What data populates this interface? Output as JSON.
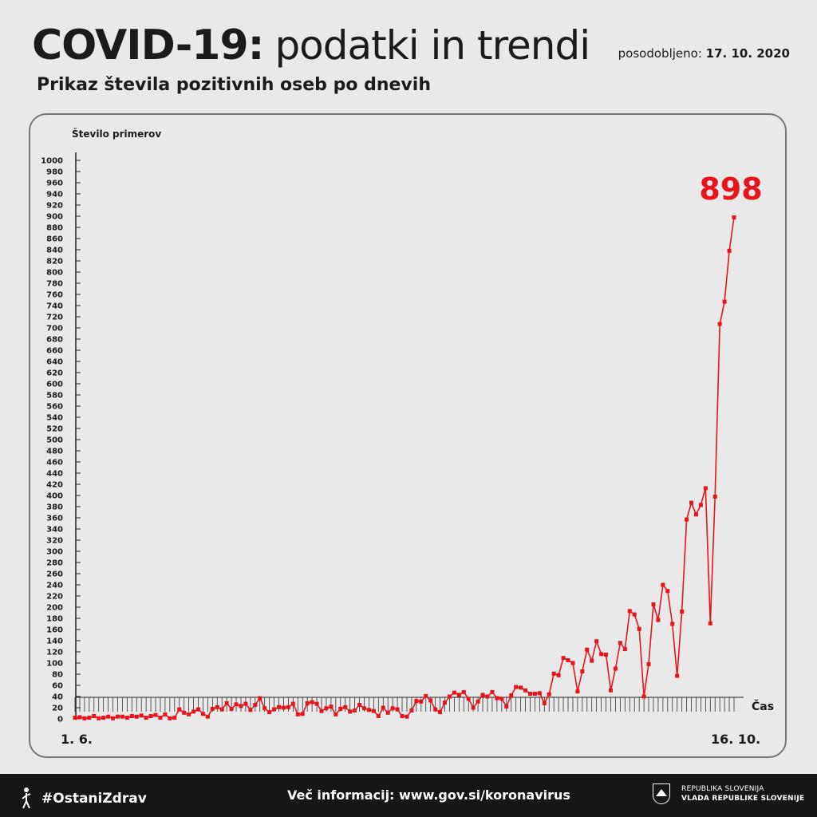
{
  "header": {
    "title_bold": "COVID-19:",
    "title_light": "podatki in trendi",
    "updated_label": "posodobljeno:",
    "updated_date": "17. 10. 2020",
    "subtitle": "Prikaz števila pozitivnih oseb po dnevih"
  },
  "footer": {
    "hashtag": "#OstaniZdrav",
    "info": "Več informacij: www.gov.si/koronavirus",
    "gov_line1": "REPUBLIKA SLOVENIJA",
    "gov_line2": "VLADA REPUBLIKE SLOVENIJE"
  },
  "colors": {
    "line": "#e8141c",
    "text": "#1b1b1b",
    "background": "#e9e9e9",
    "footer": "#161616"
  },
  "chart_data": {
    "type": "line",
    "ylabel": "Število primerov",
    "xlabel": "Čas",
    "x_start_label": "1. 6.",
    "x_end_label": "16. 10.",
    "ylim": [
      0,
      1000
    ],
    "y_tick_step": 20,
    "highlight_value": "898",
    "grid": false,
    "series": [
      {
        "values": [
          2,
          3,
          1,
          2,
          5,
          1,
          2,
          4,
          1,
          4,
          4,
          2,
          5,
          4,
          6,
          2,
          5,
          7,
          2,
          8,
          1,
          2,
          17,
          11,
          8,
          13,
          17,
          9,
          4,
          18,
          21,
          17,
          28,
          18,
          26,
          23,
          27,
          16,
          25,
          37,
          19,
          12,
          17,
          21,
          20,
          21,
          27,
          8,
          9,
          28,
          30,
          27,
          14,
          19,
          22,
          8,
          18,
          21,
          13,
          15,
          25,
          19,
          16,
          14,
          5,
          20,
          11,
          19,
          17,
          5,
          4,
          15,
          32,
          31,
          41,
          33,
          17,
          12,
          29,
          40,
          47,
          43,
          48,
          36,
          20,
          31,
          43,
          40,
          48,
          37,
          36,
          22,
          42,
          57,
          56,
          51,
          45,
          45,
          46,
          28,
          44,
          81,
          78,
          109,
          105,
          100,
          49,
          85,
          124,
          104,
          139,
          116,
          115,
          51,
          90,
          136,
          125,
          193,
          187,
          161,
          40,
          98,
          205,
          177,
          240,
          229,
          170,
          77,
          192,
          357,
          387,
          366,
          383,
          413,
          171,
          398,
          707,
          747,
          838,
          898
        ]
      }
    ]
  }
}
